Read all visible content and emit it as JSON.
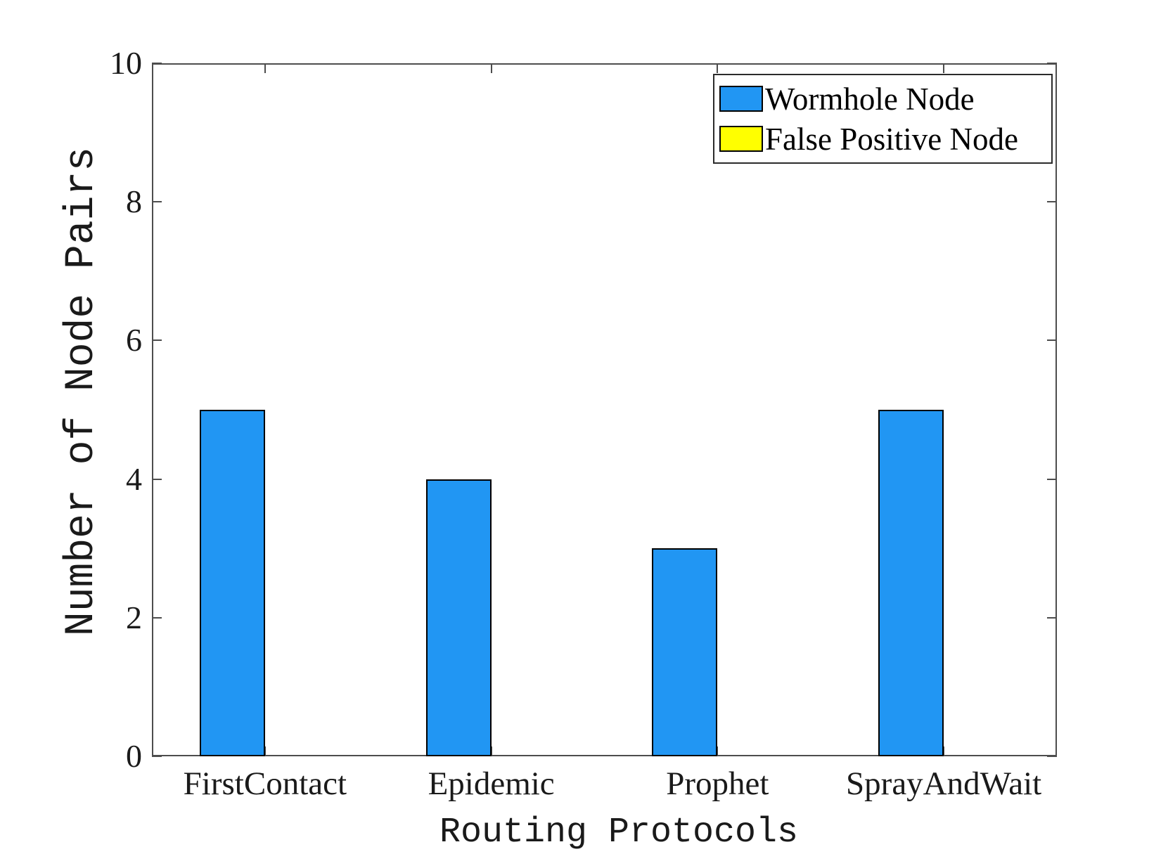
{
  "chart_data": {
    "type": "bar",
    "title": "",
    "categories": [
      "FirstContact",
      "Epidemic",
      "Prophet",
      "SprayAndWait"
    ],
    "series": [
      {
        "name": "Wormhole Node",
        "color": "#2196F3",
        "values": [
          5,
          4,
          3,
          5
        ]
      },
      {
        "name": "False Positive Node",
        "color": "#FFFF00",
        "values": [
          0,
          0,
          0,
          0
        ]
      }
    ],
    "xlabel": "Routing Protocols",
    "ylabel": "Number of Node Pairs",
    "ylim": [
      0,
      10
    ],
    "yticks": [
      0,
      2,
      4,
      6,
      8,
      10
    ],
    "grid": false,
    "legend_position": "top-right",
    "axis_color": "#4D4D4D",
    "bar_edge_color": "#000000",
    "background_color": "#FFFFFF"
  }
}
